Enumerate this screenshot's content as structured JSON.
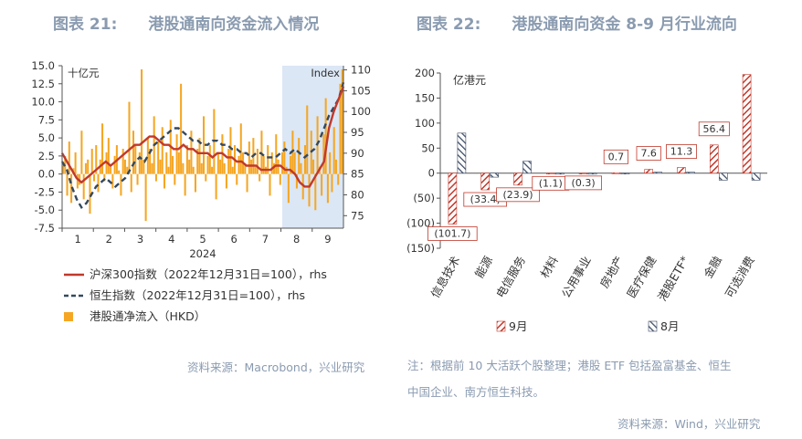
{
  "left": {
    "figure_number": "图表 21:",
    "figure_title": "港股通南向资金流入情况",
    "source": "资料来源：Macrobond，兴业研究"
  },
  "right": {
    "figure_number": "图表 22:",
    "figure_title": "港股通南向资金 8-9 月行业流向",
    "note_line1": "注：根据前 10 大活跃个股整理；港股 ETF 包括盈富基金、恒生",
    "note_line2": "中国企业、南方恒生科技。",
    "source": "资料来源：Wind，兴业研究"
  },
  "colors": {
    "bar_orange": "#f5a623",
    "csi_red": "#c0392b",
    "hsi_dark": "#34495e",
    "shade_blue": "#dbe7f5",
    "red_hatch": "#c0392b",
    "navy_hatch": "#3b4a63"
  },
  "chart_data": [
    {
      "type": "bar",
      "unit_label": "十亿元",
      "right_axis_label": "Index",
      "left_ticks": [
        "15.0",
        "12.5",
        "10.0",
        "7.5",
        "5.0",
        "2.5",
        "0.0",
        "-2.5",
        "-5.0",
        "-7.5"
      ],
      "right_ticks": [
        "110",
        "105",
        "100",
        "95",
        "90",
        "85",
        "80",
        "75"
      ],
      "ylim_left": [
        -7.5,
        15.0
      ],
      "ylim_right": [
        72,
        111
      ],
      "x_ticks": [
        "1",
        "2",
        "3",
        "4",
        "5",
        "6",
        "7",
        "8",
        "9"
      ],
      "year_label": "2024",
      "shaded_range": "late July – September",
      "legend": [
        {
          "label": "沪深300指数（2022年12月31日=100），rhs",
          "style": "solid-red"
        },
        {
          "label": "恒生指数（2022年12月31日=100），rhs",
          "style": "dashed-dark"
        },
        {
          "label": "港股通净流入（HKD）",
          "style": "orange-bar"
        }
      ],
      "flow_values": [
        1.2,
        2.5,
        -3.0,
        4.5,
        -4.0,
        0.8,
        3.0,
        -2.0,
        -1.5,
        6.0,
        -3.5,
        1.5,
        2.0,
        -5.5,
        3.5,
        -1.0,
        4.0,
        -2.5,
        2.0,
        7.0,
        -1.0,
        3.0,
        5.0,
        1.0,
        -2.0,
        2.5,
        4.0,
        0.5,
        -3.0,
        3.5,
        2.0,
        1.0,
        10.0,
        -2.5,
        6.0,
        4.0,
        -1.5,
        3.0,
        14.5,
        2.0,
        -6.5,
        5.0,
        3.5,
        1.5,
        8.0,
        -1.0,
        4.5,
        2.0,
        6.5,
        -2.0,
        3.0,
        1.0,
        7.5,
        2.5,
        -1.5,
        5.5,
        3.0,
        12.5,
        1.5,
        -3.0,
        4.0,
        2.0,
        6.0,
        1.0,
        -2.5,
        3.5,
        5.0,
        1.5,
        8.0,
        -1.0,
        2.5,
        4.0,
        1.0,
        9.0,
        -3.5,
        3.0,
        2.0,
        5.5,
        1.5,
        -2.0,
        3.5,
        6.5,
        1.0,
        4.0,
        -1.5,
        2.5,
        7.0,
        3.0,
        1.5,
        -2.5,
        4.5,
        2.0,
        5.0,
        1.0,
        3.5,
        -1.0,
        6.0,
        2.5,
        1.0,
        4.0,
        -3.0,
        3.0,
        1.5,
        5.5,
        2.0,
        -1.5,
        3.0,
        4.5,
        1.0,
        -4.0,
        2.5,
        6.0,
        3.0,
        -2.0,
        5.0,
        1.5,
        -3.5,
        4.0,
        9.5,
        -4.5,
        6.0,
        2.0,
        -5.0,
        8.0,
        1.0,
        -3.0,
        5.5,
        10.5,
        -4.0,
        3.0,
        -2.5,
        6.5,
        2.0,
        -1.5,
        12.5,
        14.5
      ]
    },
    {
      "type": "bar",
      "unit_label": "亿港元",
      "ylim": [
        -150,
        200
      ],
      "y_ticks": [
        "200",
        "150",
        "100",
        "50",
        "0",
        "(50)",
        "(100)",
        "(150)"
      ],
      "categories": [
        "信息技术",
        "能源",
        "电信服务",
        "材料",
        "公用事业",
        "房地产",
        "医疗保健",
        "港股ETF*",
        "金融",
        "可选消费"
      ],
      "series": [
        {
          "name": "9月",
          "values": [
            -101.7,
            -33.4,
            -23.9,
            -1.1,
            -0.3,
            0.7,
            7.6,
            11.3,
            56.4,
            197
          ]
        },
        {
          "name": "8月",
          "values": [
            80,
            -8,
            24,
            -2,
            -2,
            0,
            2,
            2,
            -14,
            -14
          ]
        }
      ],
      "data_labels": [
        "(101.7)",
        "(33.4)",
        "(23.9)",
        "(1.1)",
        "(0.3)",
        "0.7",
        "7.6",
        "11.3",
        "56.4",
        ""
      ]
    }
  ]
}
